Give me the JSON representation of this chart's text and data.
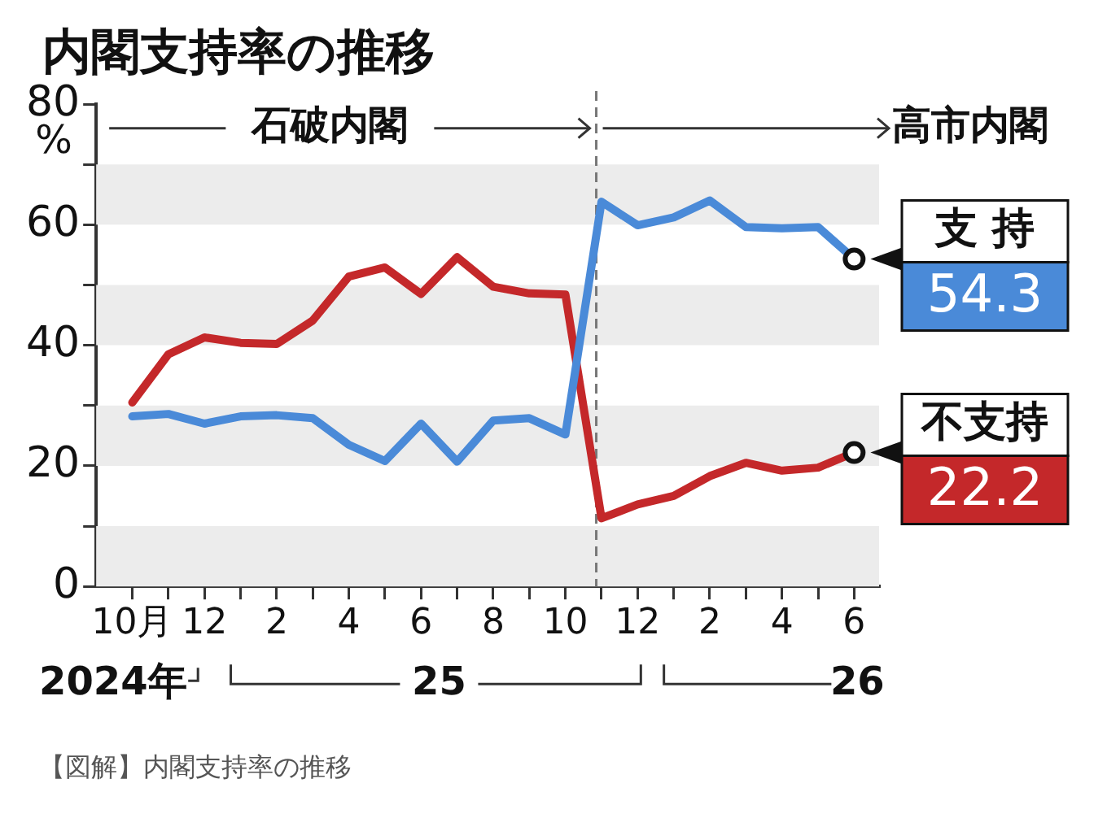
{
  "chart_data": {
    "type": "line",
    "title": "内閣支持率の推移",
    "ylabel": "%",
    "x": [
      "2024-10",
      "2024-11",
      "2024-12",
      "2025-01",
      "2025-02",
      "2025-03",
      "2025-04",
      "2025-05",
      "2025-06",
      "2025-07",
      "2025-08",
      "2025-09",
      "2025-10",
      "2025-11",
      "2025-12",
      "2026-01",
      "2026-02",
      "2026-03",
      "2026-04",
      "2026-05",
      "2026-06"
    ],
    "series": [
      {
        "name": "支 持",
        "color": "#4a8ad8",
        "values": [
          28.2,
          28.6,
          27.0,
          28.2,
          28.4,
          27.9,
          23.5,
          20.8,
          27.0,
          20.7,
          27.5,
          27.9,
          25.2,
          63.8,
          59.9,
          61.2,
          64.0,
          59.6,
          59.4,
          59.6,
          54.3
        ],
        "value_labels": [
          null,
          null,
          null,
          null,
          null,
          null,
          null,
          null,
          null,
          null,
          null,
          null,
          null,
          null,
          null,
          null,
          null,
          null,
          null,
          null,
          "54.3"
        ]
      },
      {
        "name": "不支持",
        "color": "#c4282a",
        "values": [
          30.5,
          38.5,
          41.3,
          40.4,
          40.2,
          44.1,
          51.4,
          52.9,
          48.5,
          54.6,
          49.7,
          48.6,
          48.4,
          11.3,
          13.6,
          15.0,
          18.3,
          20.5,
          19.2,
          19.7,
          22.2
        ],
        "value_labels": [
          null,
          null,
          null,
          null,
          null,
          null,
          null,
          null,
          null,
          null,
          null,
          null,
          null,
          null,
          null,
          null,
          null,
          null,
          null,
          null,
          "22.2"
        ]
      }
    ],
    "xlim": [
      "2024-09-01",
      "2026-06-22"
    ],
    "xticks": [
      {
        "value": "2024-10",
        "label": "10月"
      },
      {
        "value": "2024-11",
        "label": null
      },
      {
        "value": "2024-12",
        "label": "12"
      },
      {
        "value": "2025-01",
        "label": null
      },
      {
        "value": "2025-02",
        "label": "2"
      },
      {
        "value": "2025-03",
        "label": null
      },
      {
        "value": "2025-04",
        "label": "4"
      },
      {
        "value": "2025-05",
        "label": null
      },
      {
        "value": "2025-06",
        "label": "6"
      },
      {
        "value": "2025-07",
        "label": null
      },
      {
        "value": "2025-08",
        "label": "8"
      },
      {
        "value": "2025-09",
        "label": null
      },
      {
        "value": "2025-10",
        "label": "10"
      },
      {
        "value": "2025-11",
        "label": null
      },
      {
        "value": "2025-12",
        "label": "12"
      },
      {
        "value": "2026-01",
        "label": null
      },
      {
        "value": "2026-02",
        "label": "2"
      },
      {
        "value": "2026-03",
        "label": null
      },
      {
        "value": "2026-04",
        "label": "4"
      },
      {
        "value": "2026-05",
        "label": null
      },
      {
        "value": "2026-06",
        "label": "6"
      }
    ],
    "ylim": [
      0,
      80
    ],
    "yticks": [
      0,
      {
        "value": 10,
        "label": null
      },
      20,
      {
        "value": 30,
        "label": null
      },
      40,
      {
        "value": 50,
        "label": null
      },
      60,
      {
        "value": 70,
        "label": null
      },
      80
    ],
    "bands": [
      {
        "axis": "y",
        "from": 0,
        "to": 10,
        "color": "#ececec"
      },
      {
        "axis": "y",
        "from": 20,
        "to": 30,
        "color": "#ececec"
      },
      {
        "axis": "y",
        "from": 40,
        "to": 50,
        "color": "#ececec"
      },
      {
        "axis": "y",
        "from": 60,
        "to": 70,
        "color": "#ececec"
      }
    ],
    "ref_lines": [
      {
        "axis": "x",
        "value": "2025-10-27",
        "color": "#777777",
        "line_style": "dashed"
      }
    ],
    "annotations": [
      {
        "text": "石破内閣",
        "x": "2025-10-27",
        "y": 76
      },
      {
        "text": "高市内閣",
        "x": "2025-10-27",
        "y": 76
      },
      "2024年",
      "25",
      "26",
      "【図解】内閣支持率の推移"
    ],
    "grid": false,
    "legend": false,
    "marker": "none",
    "line_style": "solid"
  }
}
